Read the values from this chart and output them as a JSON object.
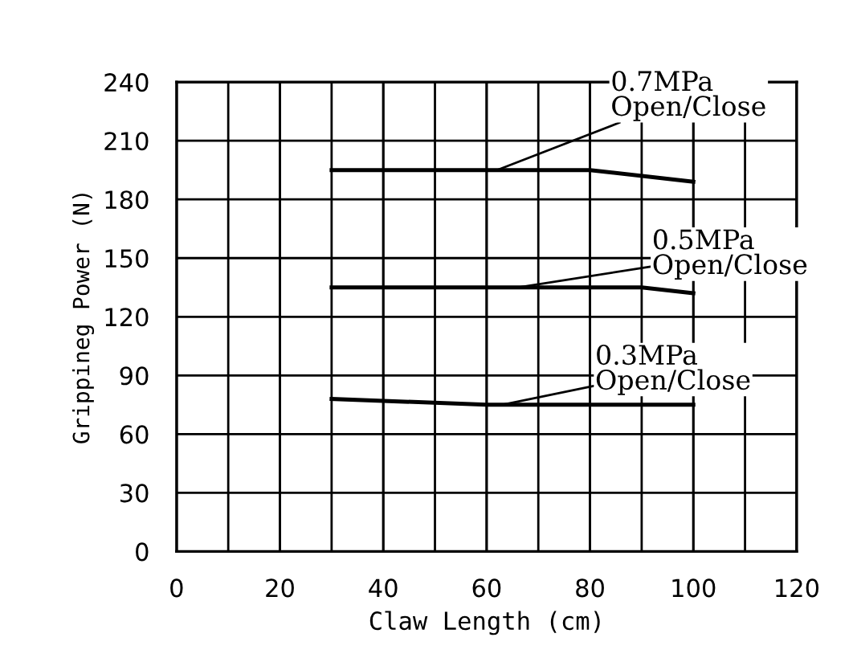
{
  "chart_data": {
    "type": "line",
    "xlabel": "Claw Length (cm)",
    "ylabel": "Grippineg Power (N)",
    "xlim": [
      0,
      120
    ],
    "xticks": [
      0,
      20,
      40,
      60,
      80,
      100,
      120
    ],
    "ylim": [
      0,
      240
    ],
    "yticks": [
      0,
      30,
      60,
      90,
      120,
      150,
      180,
      210,
      240
    ],
    "grid": true,
    "marker": "none",
    "line_style": "solid",
    "series": [
      {
        "color": "#000000",
        "x": [
          30,
          80,
          100
        ],
        "values": [
          195,
          195,
          189
        ]
      },
      {
        "color": "#000000",
        "x": [
          30,
          90,
          100
        ],
        "values": [
          135,
          135,
          132
        ]
      },
      {
        "color": "#000000",
        "x": [
          30,
          60,
          100
        ],
        "values": [
          78,
          75,
          75
        ]
      }
    ],
    "annotations": [
      {
        "text": "0.7MPa\nOpen/Close",
        "x": 62,
        "y": 195
      },
      {
        "text": "0.5MPa\nOpen/Close",
        "x": 66,
        "y": 135
      },
      {
        "text": "0.3MPa\nOpen/Close",
        "x": 63,
        "y": 75
      }
    ]
  }
}
